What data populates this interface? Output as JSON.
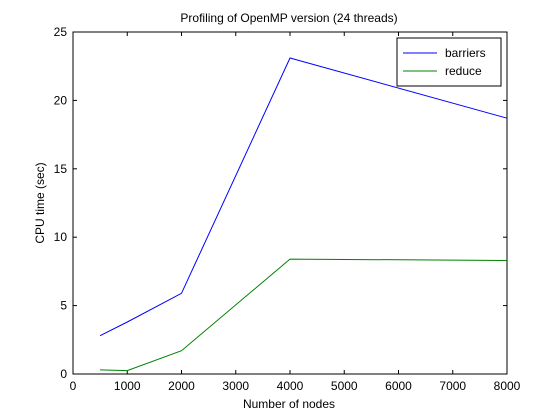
{
  "chart_data": {
    "type": "line",
    "title": "Profiling of OpenMP version (24 threads)",
    "xlabel": "Number of nodes",
    "ylabel": "CPU time (sec)",
    "xlim": [
      0,
      8000
    ],
    "ylim": [
      0,
      25
    ],
    "xticks": [
      0,
      1000,
      2000,
      3000,
      4000,
      5000,
      6000,
      7000,
      8000
    ],
    "yticks": [
      0,
      5,
      10,
      15,
      20,
      25
    ],
    "grid": false,
    "legend_position": "top-right",
    "series": [
      {
        "name": "barriers",
        "color": "#0000ff",
        "x": [
          500,
          1000,
          2000,
          4000,
          8000
        ],
        "y": [
          2.8,
          3.8,
          5.9,
          23.1,
          18.7
        ]
      },
      {
        "name": "reduce",
        "color": "#008000",
        "x": [
          500,
          1000,
          2000,
          4000,
          8000
        ],
        "y": [
          0.3,
          0.25,
          1.7,
          8.4,
          8.3
        ]
      }
    ]
  }
}
